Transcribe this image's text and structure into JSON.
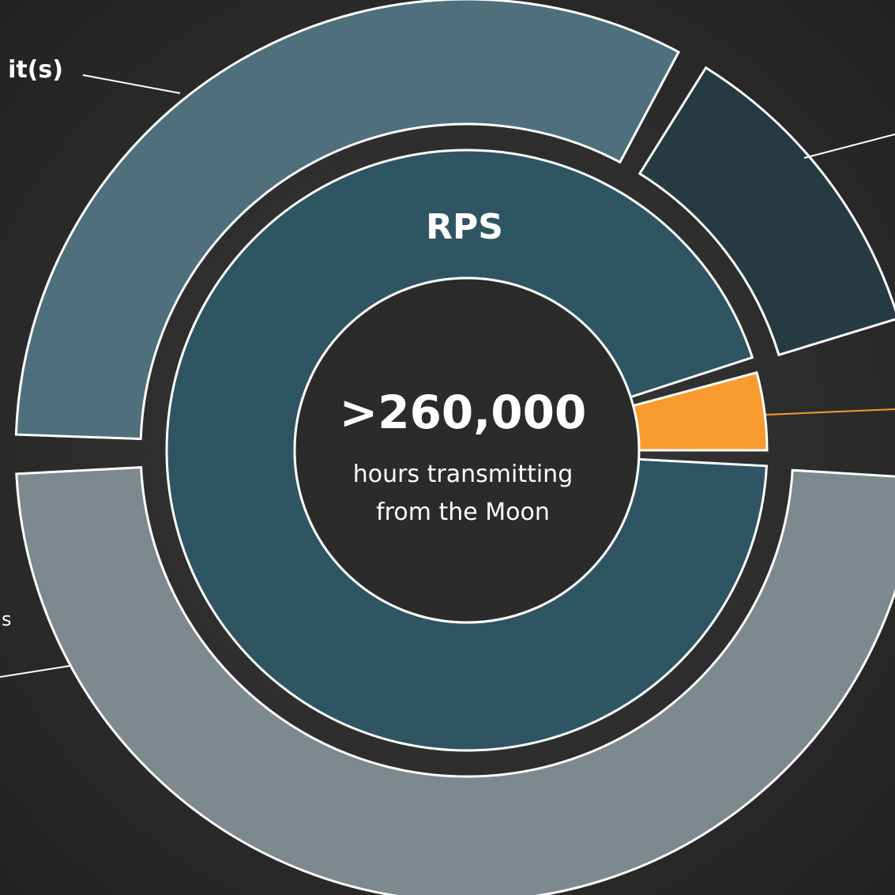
{
  "labels": {
    "top_left": "it(s)",
    "bottom_left": "s"
  },
  "center": {
    "title": "RPS",
    "value": ">260,000",
    "caption_line1": "hours transmitting",
    "caption_line2": "from the Moon"
  }
}
